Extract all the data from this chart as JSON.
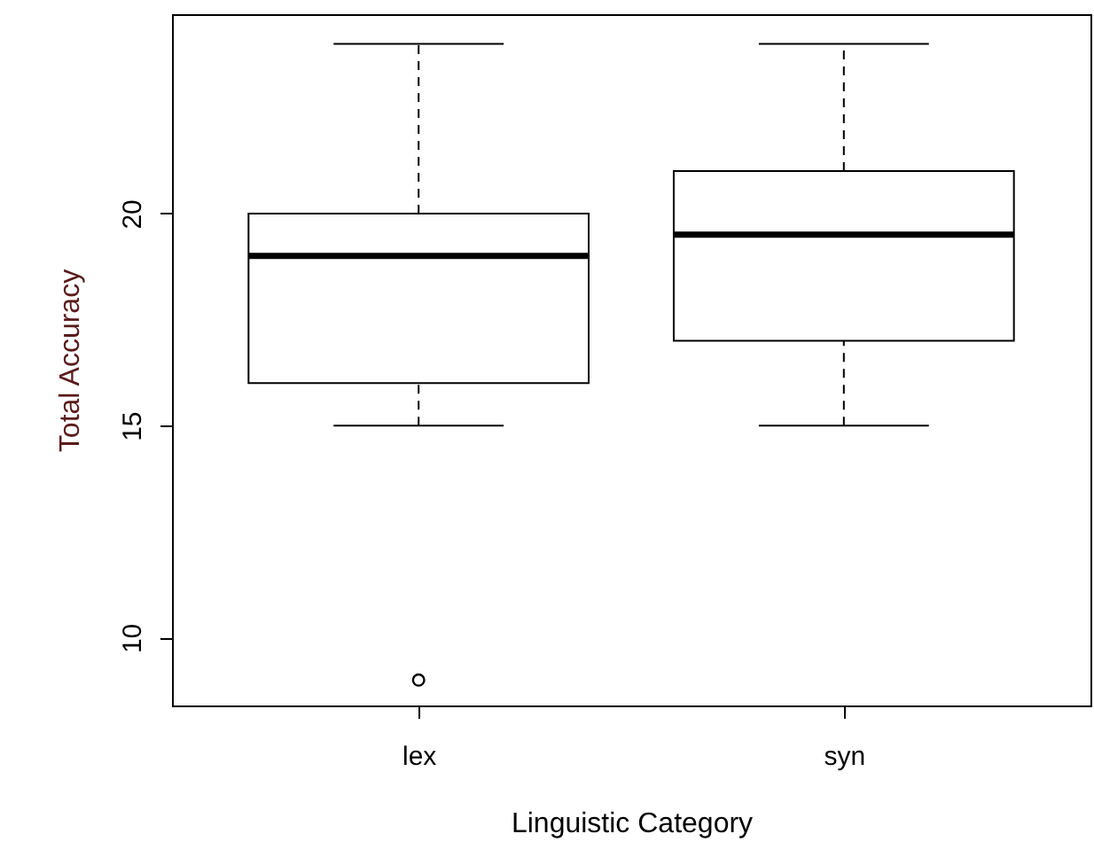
{
  "chart_data": {
    "type": "box",
    "xlabel": "Linguistic Category",
    "ylabel": "Total Accuracy",
    "categories": [
      "lex",
      "syn"
    ],
    "boxes": [
      {
        "low": 15,
        "q1": 16,
        "median": 19,
        "q3": 20,
        "high": 24,
        "outliers": [
          9
        ]
      },
      {
        "low": 15,
        "q1": 17,
        "median": 19.5,
        "q3": 21,
        "high": 24
      }
    ],
    "ylim": [
      8.4,
      24.7
    ],
    "yticks": [
      10,
      15,
      20
    ],
    "grid": false
  }
}
